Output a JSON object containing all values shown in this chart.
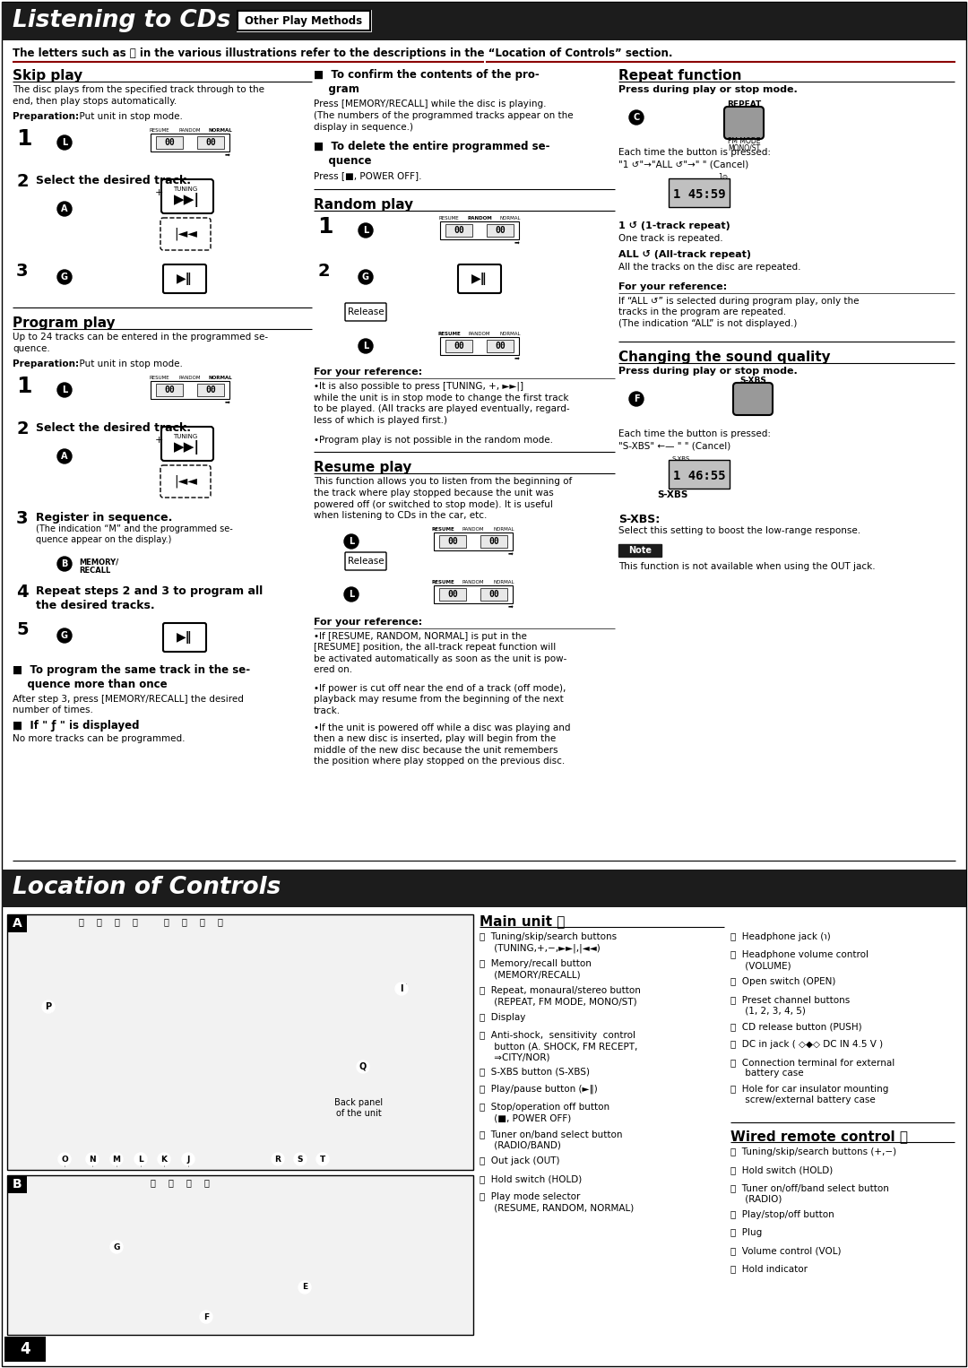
{
  "page_bg": "#ffffff",
  "header_bg": "#1c1c1c",
  "title1": "Listening to CDs",
  "title1_sub": "Other Play Methods",
  "title2": "Location of Controls",
  "intro_text": "The letters such as Ⓐ in the various illustrations refer to the descriptions in the “Location of Controls” section.",
  "page_number": "4"
}
